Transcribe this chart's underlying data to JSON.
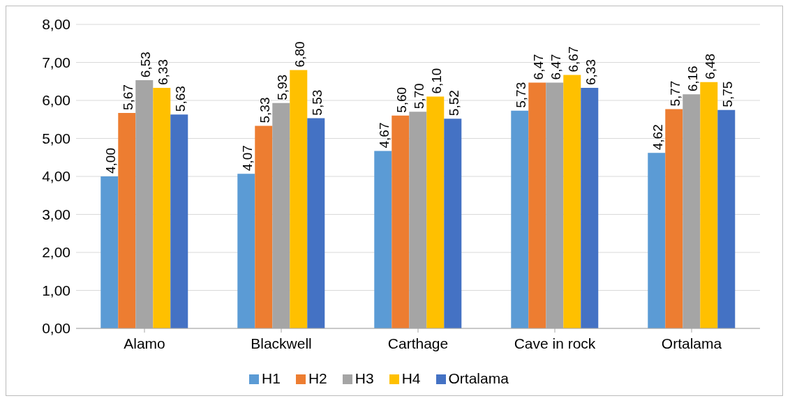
{
  "chart_data": {
    "type": "bar",
    "categories": [
      "Alamo",
      "Blackwell",
      "Carthage",
      "Cave in rock",
      "Ortalama"
    ],
    "series": [
      {
        "name": "H1",
        "color": "#5b9bd5",
        "values": [
          4.0,
          4.07,
          4.67,
          5.73,
          4.62
        ],
        "value_labels": [
          "4,00",
          "4,07",
          "4,67",
          "5,73",
          "4,62"
        ]
      },
      {
        "name": "H2",
        "color": "#ed7d31",
        "values": [
          5.67,
          5.33,
          5.6,
          6.47,
          5.77
        ],
        "value_labels": [
          "5,67",
          "5,33",
          "5,60",
          "6,47",
          "5,77"
        ]
      },
      {
        "name": "H3",
        "color": "#a5a5a5",
        "values": [
          6.53,
          5.93,
          5.7,
          6.47,
          6.16
        ],
        "value_labels": [
          "6,53",
          "5,93",
          "5,70",
          "6,47",
          "6,16"
        ]
      },
      {
        "name": "H4",
        "color": "#ffc000",
        "values": [
          6.33,
          6.8,
          6.1,
          6.67,
          6.48
        ],
        "value_labels": [
          "6,33",
          "6,80",
          "6,10",
          "6,67",
          "6,48"
        ]
      },
      {
        "name": "Ortalama",
        "color": "#4472c4",
        "values": [
          5.63,
          5.53,
          5.52,
          6.33,
          5.75
        ],
        "value_labels": [
          "5,63",
          "5,53",
          "5,52",
          "6,33",
          "5,75"
        ]
      }
    ],
    "ylim": [
      0,
      8
    ],
    "yticks": [
      {
        "value": 0,
        "label": "0,00"
      },
      {
        "value": 1,
        "label": "1,00"
      },
      {
        "value": 2,
        "label": "2,00"
      },
      {
        "value": 3,
        "label": "3,00"
      },
      {
        "value": 4,
        "label": "4,00"
      },
      {
        "value": 5,
        "label": "5,00"
      },
      {
        "value": 6,
        "label": "6,00"
      },
      {
        "value": 7,
        "label": "7,00"
      },
      {
        "value": 8,
        "label": "8,00"
      }
    ],
    "grid": "y",
    "legend": "bottom"
  }
}
